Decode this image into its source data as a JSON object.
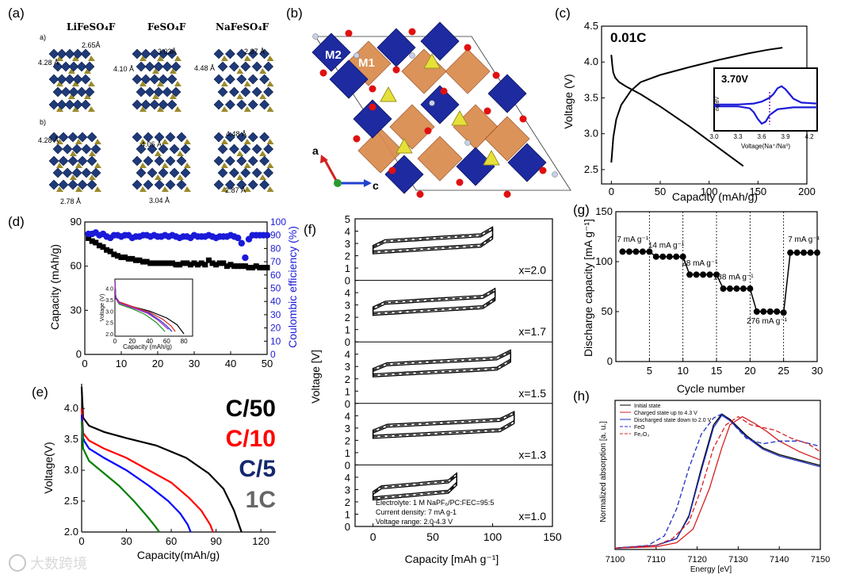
{
  "panel_labels": {
    "a": "(a)",
    "b": "(b)",
    "c": "(c)",
    "d": "(d)",
    "e": "(e)",
    "f": "(f)",
    "g": "(g)",
    "h": "(h)"
  },
  "panel_a": {
    "titles": [
      "LiFeSO₄F",
      "FeSO₄F",
      "NaFeSO₄F"
    ],
    "row_labels": [
      "a)",
      "b)"
    ],
    "distances_top": [
      "4.28 Å",
      "2.65Å",
      "4.10 Å",
      "3.03Å",
      "4.48 Å",
      "2.87 Å"
    ],
    "distances_bottom": [
      "4.28 Å",
      "4.06 Å",
      "4.48 Å",
      "2.78 Å",
      "3.04 Å",
      "2.87 Å"
    ]
  },
  "panel_b": {
    "site_labels": [
      "M2",
      "M1"
    ],
    "axis_a": "a",
    "axis_c": "c"
  },
  "watermark": "大数跨境",
  "chart_data": [
    {
      "panel": "c",
      "type": "line",
      "xlabel": "Capacity (mAh/g)",
      "ylabel": "Voltage (V)",
      "xlim": [
        -10,
        200
      ],
      "ylim": [
        2.3,
        4.5
      ],
      "xticks": [
        0,
        50,
        100,
        150,
        200
      ],
      "yticks": [
        2.5,
        3.0,
        3.5,
        4.0,
        4.5
      ],
      "annotation": "0.01C",
      "series": [
        {
          "x": [
            0,
            2,
            5,
            10,
            20,
            30,
            50,
            80,
            110,
            140,
            160,
            175
          ],
          "y": [
            2.6,
            2.95,
            3.2,
            3.4,
            3.6,
            3.72,
            3.82,
            3.93,
            4.03,
            4.12,
            4.17,
            4.2
          ]
        },
        {
          "x": [
            0,
            1,
            2,
            4,
            8,
            15,
            30,
            50,
            80,
            110,
            135
          ],
          "y": [
            4.1,
            3.95,
            3.85,
            3.78,
            3.72,
            3.66,
            3.55,
            3.38,
            3.1,
            2.8,
            2.55
          ]
        }
      ],
      "inset": {
        "annotation": "3.70V",
        "ylabel": "dq/dV",
        "xlabel": "Voltage(Na⁺/Na⁰)",
        "xticks": [
          "3.0",
          "3.3",
          "3.6",
          "3.9",
          "4.2"
        ],
        "xlim": [
          3.0,
          4.3
        ],
        "series": [
          {
            "x": [
              3.0,
              3.3,
              3.5,
              3.6,
              3.7,
              3.75,
              3.8,
              3.85,
              3.9,
              3.95,
              4.0,
              4.1,
              4.3
            ],
            "y": [
              0.05,
              0.05,
              0.1,
              0.2,
              0.4,
              0.6,
              0.9,
              1.0,
              0.85,
              0.6,
              0.35,
              0.15,
              0.1
            ]
          },
          {
            "x": [
              3.0,
              3.3,
              3.45,
              3.5,
              3.55,
              3.6,
              3.65,
              3.7,
              3.8,
              4.0,
              4.3
            ],
            "y": [
              -0.05,
              -0.05,
              -0.15,
              -0.35,
              -0.7,
              -0.95,
              -0.85,
              -0.5,
              -0.2,
              -0.1,
              -0.1
            ]
          }
        ]
      }
    },
    {
      "panel": "d",
      "type": "scatter",
      "xlabel": "",
      "ylabel": "Capacity (mAh/g)",
      "ylabel_right": "Coulombic efficiency (%)",
      "xlim": [
        0,
        50
      ],
      "ylim": [
        0,
        90
      ],
      "ylim_right": [
        0,
        100
      ],
      "xticks": [
        0,
        10,
        20,
        30,
        40,
        50
      ],
      "yticks": [
        0,
        30,
        60,
        90
      ],
      "yticks_right": [
        0,
        10,
        20,
        30,
        40,
        50,
        60,
        70,
        80,
        90,
        100
      ],
      "series": [
        {
          "name": "capacity",
          "x": [
            1,
            2,
            3,
            4,
            5,
            6,
            7,
            8,
            9,
            10,
            11,
            12,
            13,
            14,
            15,
            16,
            17,
            18,
            19,
            20,
            21,
            22,
            23,
            24,
            25,
            26,
            27,
            28,
            29,
            30,
            31,
            32,
            33,
            34,
            35,
            36,
            37,
            38,
            39,
            40,
            41,
            42,
            43,
            44,
            45,
            46,
            47,
            48,
            49,
            50
          ],
          "y": [
            79,
            77,
            76,
            74,
            73,
            71,
            70,
            68,
            67,
            66,
            66,
            65,
            65,
            64,
            64,
            63,
            63,
            62,
            62,
            62,
            62,
            62,
            62,
            62,
            61,
            61,
            62,
            62,
            61,
            62,
            61,
            62,
            61,
            64,
            62,
            61,
            62,
            62,
            60,
            61,
            60,
            60,
            60,
            60,
            59,
            59,
            60,
            59,
            59,
            59
          ]
        },
        {
          "name": "coulombic efficiency",
          "x": [
            1,
            2,
            3,
            4,
            5,
            6,
            7,
            8,
            9,
            10,
            11,
            12,
            13,
            14,
            15,
            16,
            17,
            18,
            19,
            20,
            21,
            22,
            23,
            24,
            25,
            26,
            27,
            28,
            29,
            30,
            31,
            32,
            33,
            34,
            35,
            36,
            37,
            38,
            39,
            40,
            41,
            42,
            43,
            44,
            45,
            46,
            47,
            48,
            49,
            50
          ],
          "y": [
            91,
            91,
            92,
            90,
            91,
            89,
            88,
            90,
            90,
            89,
            90,
            90,
            88,
            89,
            89,
            90,
            90,
            89,
            90,
            89,
            89,
            90,
            89,
            90,
            89,
            88,
            89,
            89,
            88,
            90,
            89,
            89,
            89,
            90,
            89,
            88,
            89,
            89,
            89,
            90,
            89,
            88,
            84,
            73,
            87,
            90,
            90,
            90,
            90,
            90
          ]
        }
      ],
      "inset": {
        "xticks": [
          0,
          20,
          40,
          60,
          80
        ],
        "yticks": [
          "2.0",
          "2.5",
          "3.0",
          "3.5",
          "4.0"
        ],
        "ylabel": "Voltage (V)",
        "xlabel": "Capacity (mAh/g)",
        "xlim": [
          0,
          90
        ],
        "ylim": [
          1.9,
          4.4
        ],
        "series": [
          {
            "color": "#000000",
            "x": [
              0,
              1,
              5,
              20,
              40,
              60,
              72,
              80
            ],
            "y": [
              4.3,
              3.6,
              3.4,
              3.2,
              3.0,
              2.7,
              2.4,
              2.0
            ]
          },
          {
            "color": "#dd2222",
            "x": [
              0,
              1,
              5,
              20,
              40,
              55,
              65,
              70
            ],
            "y": [
              4.3,
              3.6,
              3.4,
              3.2,
              2.95,
              2.65,
              2.35,
              2.1
            ]
          },
          {
            "color": "#2233cc",
            "x": [
              0,
              1,
              5,
              20,
              40,
              52,
              60,
              66
            ],
            "y": [
              4.3,
              3.6,
              3.35,
              3.15,
              2.9,
              2.6,
              2.35,
              2.1
            ]
          },
          {
            "color": "#229922",
            "x": [
              0,
              1,
              5,
              20,
              35,
              48,
              58
            ],
            "y": [
              4.3,
              3.55,
              3.3,
              3.1,
              2.85,
              2.5,
              2.1
            ]
          },
          {
            "color": "#aa22cc",
            "x": [
              0,
              1,
              5,
              20,
              38,
              50,
              62
            ],
            "y": [
              4.3,
              3.55,
              3.35,
              3.15,
              2.9,
              2.6,
              2.2
            ]
          }
        ]
      }
    },
    {
      "panel": "e",
      "type": "line",
      "xlabel": "Capacity(mAh/g)",
      "ylabel": "Voltage(V)",
      "xlim": [
        0,
        130
      ],
      "ylim": [
        2.0,
        4.4
      ],
      "xticks": [
        0,
        30,
        60,
        90,
        120
      ],
      "yticks": [
        "2.0",
        "2.5",
        "3.0",
        "3.5",
        "4.0"
      ],
      "series": [
        {
          "name": "C/50",
          "color": "#000000",
          "x": [
            0,
            1,
            5,
            15,
            30,
            50,
            70,
            85,
            95,
            102,
            107
          ],
          "y": [
            4.35,
            3.85,
            3.72,
            3.62,
            3.52,
            3.4,
            3.2,
            2.95,
            2.7,
            2.35,
            2.0
          ]
        },
        {
          "name": "C/10",
          "color": "#ff0000",
          "x": [
            0,
            1,
            5,
            15,
            30,
            45,
            60,
            72,
            80,
            86,
            88
          ],
          "y": [
            4.0,
            3.6,
            3.48,
            3.35,
            3.2,
            3.0,
            2.8,
            2.55,
            2.35,
            2.12,
            2.0
          ]
        },
        {
          "name": "C/5",
          "color": "#0000ff",
          "x": [
            0,
            1,
            5,
            15,
            30,
            45,
            58,
            66,
            71,
            73
          ],
          "y": [
            3.9,
            3.5,
            3.35,
            3.2,
            3.0,
            2.75,
            2.5,
            2.3,
            2.12,
            2.0
          ]
        },
        {
          "name": "1C",
          "color": "#008000",
          "x": [
            0,
            1,
            5,
            15,
            25,
            35,
            44,
            49,
            52
          ],
          "y": [
            3.8,
            3.35,
            3.15,
            2.95,
            2.75,
            2.5,
            2.25,
            2.1,
            2.0
          ]
        }
      ],
      "legend_colors": {
        "C/50": "#000000",
        "C/10": "#ff0000",
        "C/5": "#14286e",
        "1C": "#666666"
      }
    },
    {
      "panel": "f",
      "type": "line",
      "xlabel": "Capacity [mAh g⁻¹]",
      "ylabel": "Voltage [V]",
      "xlim": [
        -15,
        150
      ],
      "xticks": [
        0,
        50,
        100,
        150
      ],
      "stack_yticks": [
        0,
        1,
        2,
        3,
        4,
        5
      ],
      "subpanels": [
        {
          "label": "x=2.0",
          "capacity": 100
        },
        {
          "label": "x=1.7",
          "capacity": 102
        },
        {
          "label": "x=1.5",
          "capacity": 115
        },
        {
          "label": "x=1.3",
          "capacity": 118
        },
        {
          "label": "x=1.0",
          "capacity": 70
        }
      ],
      "notes": [
        "Electrolyte: 1 M NaPF₆/PC:FEC=95:5",
        "Current density: 7 mA g-1",
        "Voltage  range: 2.0-4.3 V"
      ]
    },
    {
      "panel": "g",
      "type": "line",
      "xlabel": "Cycle number",
      "ylabel": "Discharge capacity [mA g⁻¹]",
      "xlim": [
        0,
        30
      ],
      "ylim": [
        0,
        150
      ],
      "xticks": [
        5,
        10,
        15,
        20,
        25,
        30
      ],
      "yticks": [
        0,
        50,
        100,
        150
      ],
      "x": [
        1,
        2,
        3,
        4,
        5,
        6,
        7,
        8,
        9,
        10,
        11,
        12,
        13,
        14,
        15,
        16,
        17,
        18,
        19,
        20,
        21,
        22,
        23,
        24,
        25,
        26,
        27,
        28,
        29,
        30
      ],
      "y": [
        110,
        110,
        110,
        110,
        110,
        105,
        105,
        105,
        105,
        105,
        87,
        87,
        87,
        87,
        87,
        73,
        73,
        73,
        73,
        73,
        50,
        50,
        50,
        50,
        49,
        109,
        109,
        109,
        109,
        109
      ],
      "rate_labels": [
        "7 mA g⁻¹",
        "14 mA g⁻¹",
        "28 mA g⁻¹",
        "138 mA g⁻¹",
        "276 mA g⁻¹",
        "7 mA g⁻¹"
      ]
    },
    {
      "panel": "h",
      "type": "line",
      "xlabel": "Energy [eV]",
      "ylabel": "Normalized absorption [a. u.]",
      "xlim": [
        7100,
        7150
      ],
      "xticks": [
        7100,
        7110,
        7120,
        7130,
        7140,
        7150
      ],
      "series": [
        {
          "name": "Initial state",
          "color": "#000000",
          "dash": false,
          "x": [
            7100,
            7110,
            7115,
            7118,
            7121,
            7124,
            7126,
            7128,
            7132,
            7136,
            7140,
            7145,
            7150
          ],
          "y": [
            0.01,
            0.03,
            0.08,
            0.25,
            0.6,
            0.92,
            1.0,
            0.96,
            0.84,
            0.75,
            0.7,
            0.66,
            0.62
          ]
        },
        {
          "name": "Charged state up to 4.3 V",
          "color": "#d62020",
          "dash": false,
          "x": [
            7100,
            7110,
            7115,
            7119,
            7123,
            7126,
            7128,
            7131,
            7134,
            7137,
            7140,
            7145,
            7150
          ],
          "y": [
            0.01,
            0.02,
            0.05,
            0.15,
            0.45,
            0.75,
            0.92,
            0.98,
            0.93,
            0.87,
            0.8,
            0.72,
            0.66
          ]
        },
        {
          "name": "Discharged state down to 2.0 V",
          "color": "#2030c0",
          "dash": false,
          "x": [
            7100,
            7110,
            7115,
            7118,
            7121,
            7124,
            7126,
            7128,
            7132,
            7136,
            7140,
            7145,
            7150
          ],
          "y": [
            0.01,
            0.03,
            0.08,
            0.24,
            0.58,
            0.9,
            0.99,
            0.95,
            0.83,
            0.74,
            0.69,
            0.65,
            0.61
          ]
        },
        {
          "name": "FeO",
          "color": "#2030c0",
          "dash": true,
          "x": [
            7100,
            7108,
            7112,
            7115,
            7118,
            7121,
            7124,
            7126,
            7128,
            7132,
            7136,
            7140,
            7145,
            7150
          ],
          "y": [
            0.01,
            0.03,
            0.1,
            0.3,
            0.6,
            0.85,
            0.97,
            1.0,
            0.95,
            0.82,
            0.78,
            0.8,
            0.8,
            0.76
          ]
        },
        {
          "name": "Fe₂O₃",
          "color": "#d62020",
          "dash": true,
          "x": [
            7100,
            7110,
            7114,
            7118,
            7121,
            7124,
            7127,
            7130,
            7133,
            7136,
            7139,
            7143,
            7147,
            7150
          ],
          "y": [
            0.01,
            0.03,
            0.08,
            0.2,
            0.45,
            0.75,
            0.92,
            0.98,
            0.92,
            0.9,
            0.88,
            0.82,
            0.78,
            0.72
          ]
        }
      ]
    }
  ]
}
